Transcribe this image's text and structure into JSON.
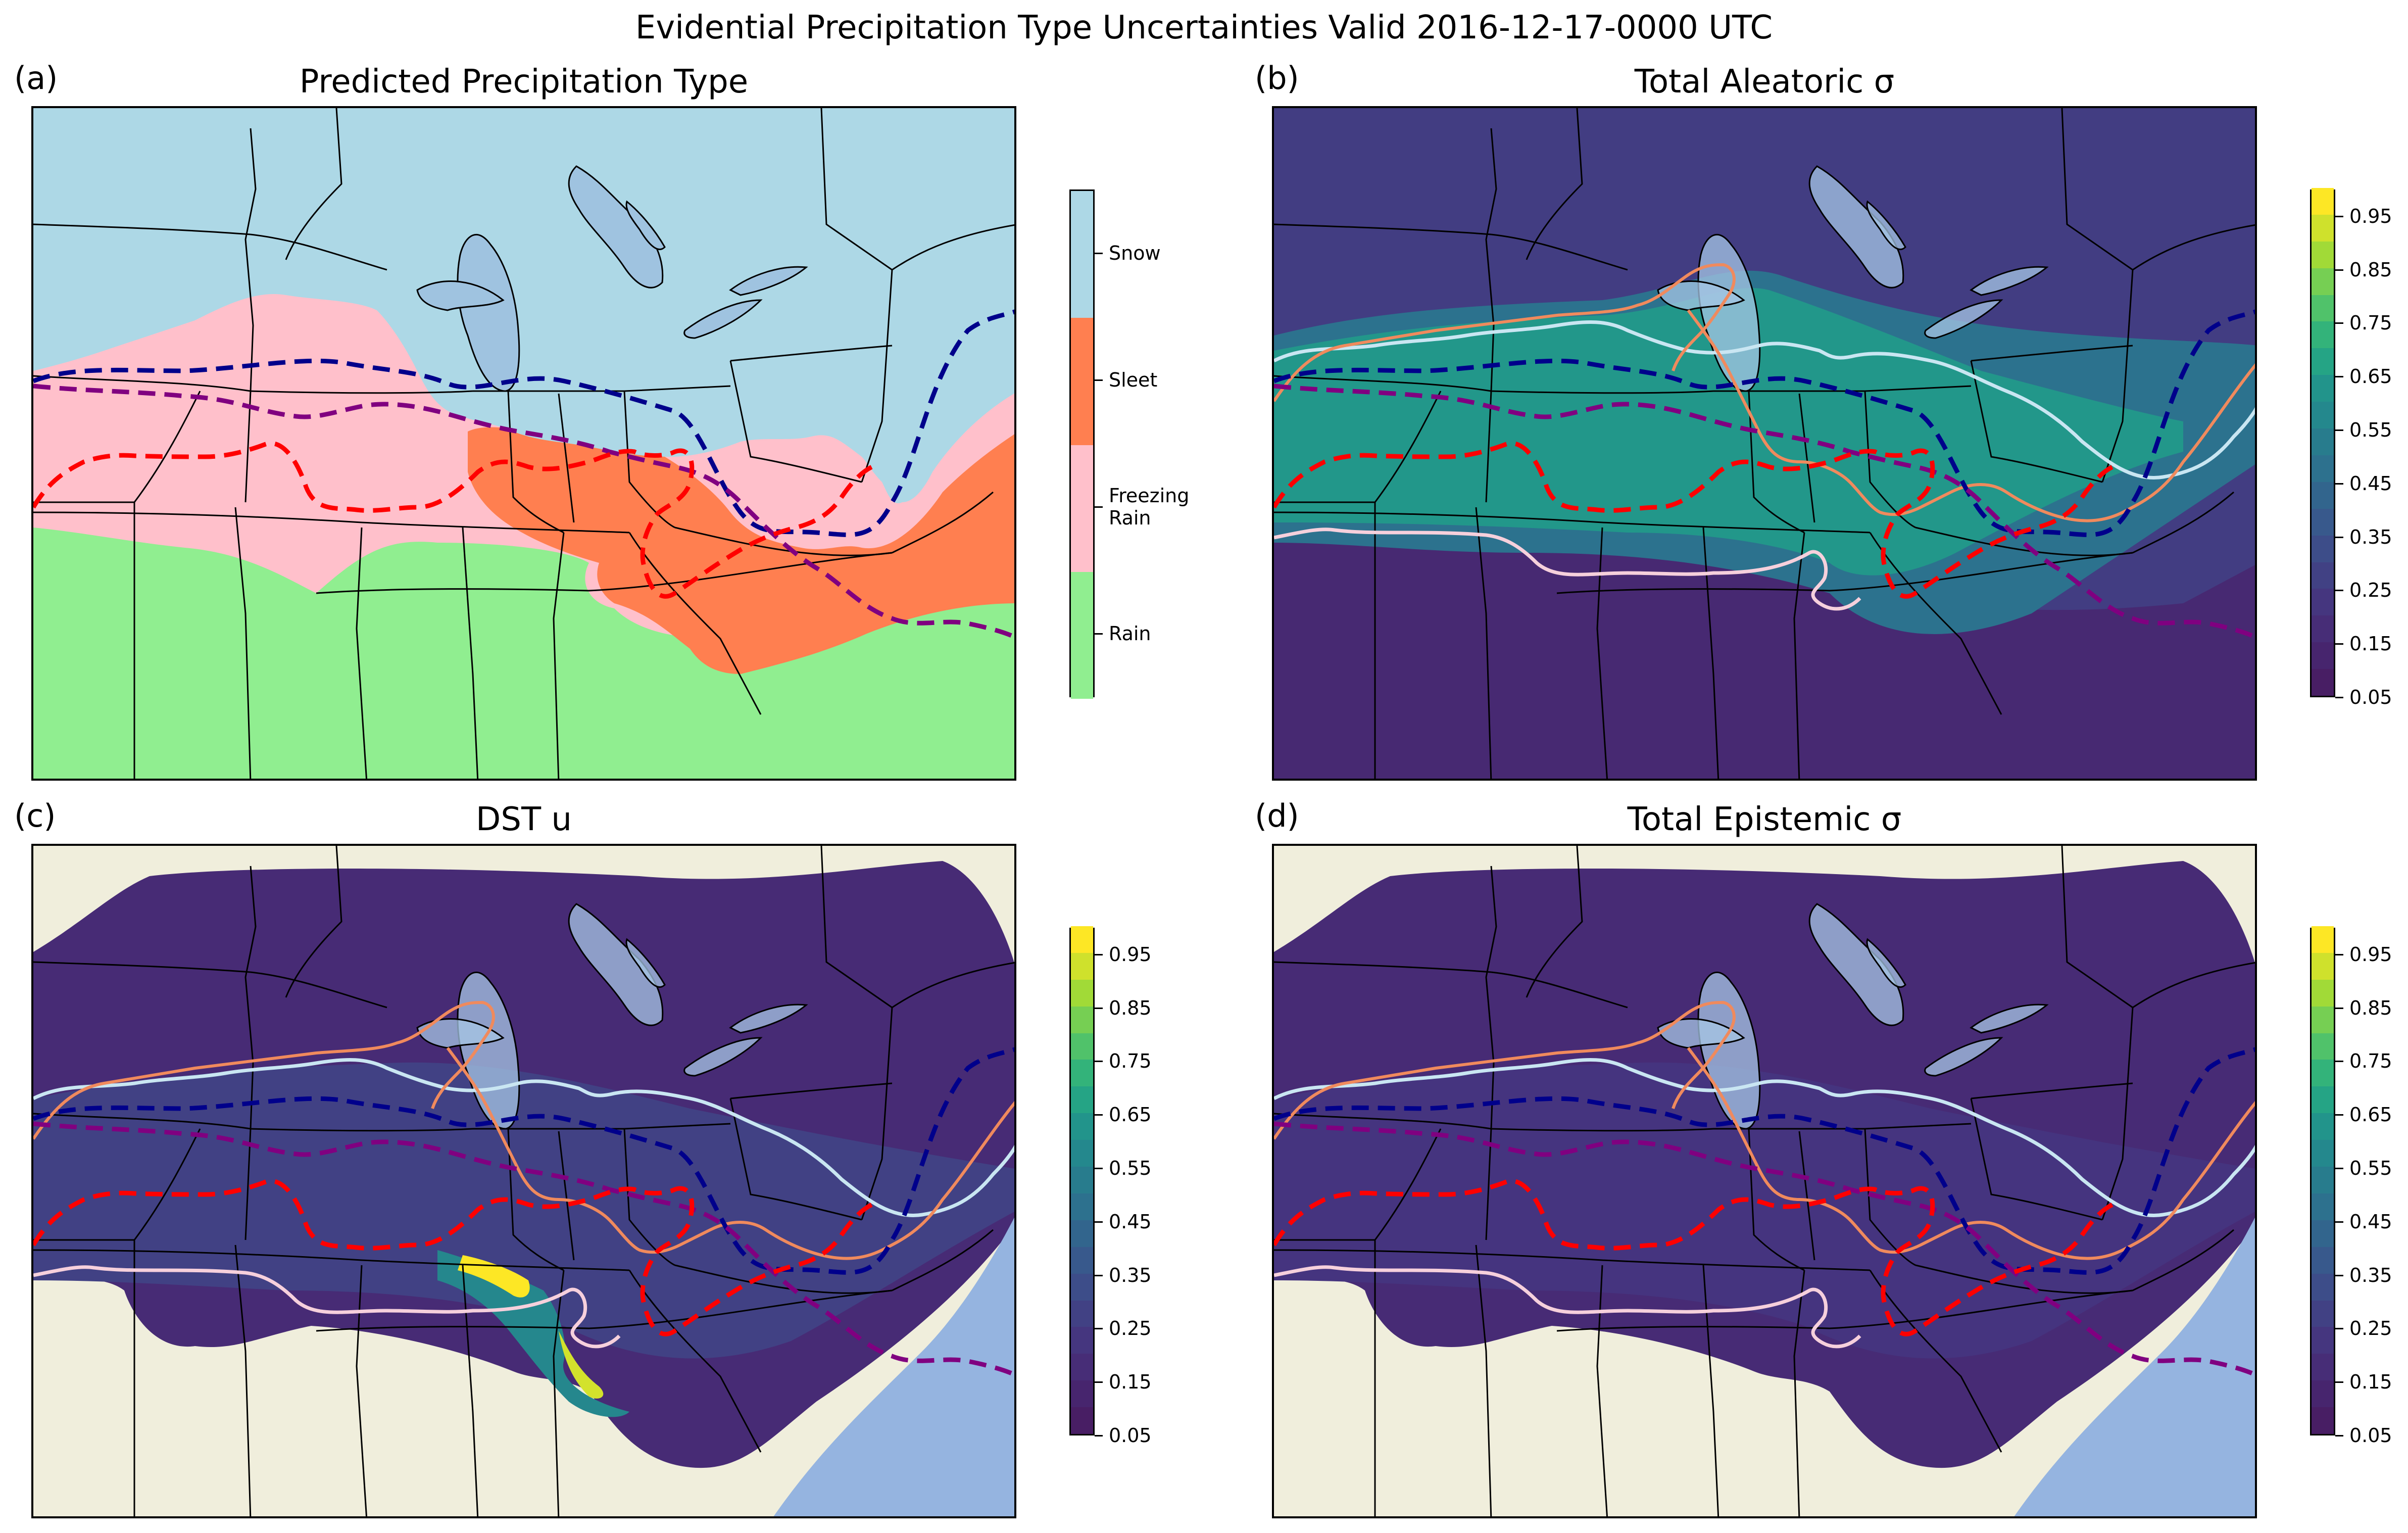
{
  "suptitle": "Evidential Precipitation Type Uncertainties Valid 2016-12-17-0000 UTC",
  "panels": [
    {
      "letter": "(a)",
      "title": "Predicted Precipitation Type",
      "field": "categorical"
    },
    {
      "letter": "(b)",
      "title": "Total Aleatoric σ",
      "field": "aleatoric"
    },
    {
      "letter": "(c)",
      "title": "DST u",
      "field": "dst"
    },
    {
      "letter": "(d)",
      "title": "Total Epistemic σ",
      "field": "epistemic"
    }
  ],
  "categories": [
    {
      "label": "Snow",
      "color": "#add8e6"
    },
    {
      "label": "Sleet",
      "color": "#ff7f50"
    },
    {
      "label": "Freezing\nRain",
      "color": "#ffc0cb"
    },
    {
      "label": "Rain",
      "color": "#90ee90"
    }
  ],
  "colorbar_ticks": [
    "0.05",
    "0.15",
    "0.25",
    "0.35",
    "0.45",
    "0.55",
    "0.65",
    "0.75",
    "0.85",
    "0.95"
  ],
  "colorbar_range": [
    0.05,
    1.0
  ],
  "contour_lines": [
    {
      "name": "freezing-line-navy",
      "color": "#00008b",
      "style": "dashed"
    },
    {
      "name": "freezing-line-purple",
      "color": "#800080",
      "style": "dashed"
    },
    {
      "name": "freezing-line-red",
      "color": "#ff0000",
      "style": "dashed"
    }
  ],
  "colors": {
    "land": "#f0eedc",
    "ocean": "#95b4e0",
    "lakes": "#a6c5e4"
  }
}
